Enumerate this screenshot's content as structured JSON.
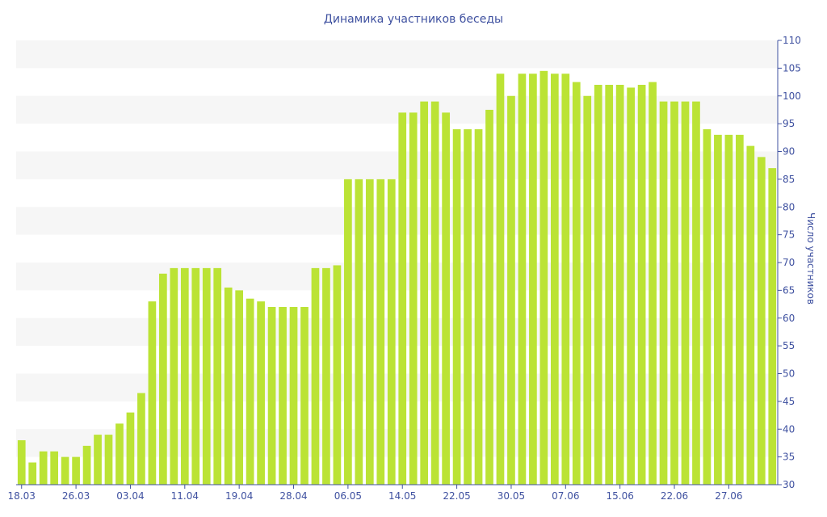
{
  "chart_data": {
    "type": "bar",
    "title": "Динамика участников беседы",
    "xlabel": "",
    "ylabel": "Число участников",
    "ylim": [
      30,
      110
    ],
    "yticks": [
      30,
      35,
      40,
      45,
      50,
      55,
      60,
      65,
      70,
      75,
      80,
      85,
      90,
      95,
      100,
      105,
      110
    ],
    "x_tick_labels": [
      "18.03",
      "26.03",
      "03.04",
      "11.04",
      "19.04",
      "28.04",
      "06.05",
      "14.05",
      "22.05",
      "30.05",
      "07.06",
      "15.06",
      "22.06",
      "27.06"
    ],
    "x_tick_positions": [
      0,
      5,
      10,
      15,
      20,
      25,
      30,
      35,
      40,
      45,
      50,
      55,
      60,
      65
    ],
    "values": [
      38,
      34,
      36,
      36,
      35,
      35,
      37,
      39,
      39,
      41,
      43,
      46.5,
      63,
      68,
      69,
      69,
      69,
      69,
      69,
      65.5,
      65,
      63.5,
      63,
      62,
      62,
      62,
      62,
      69,
      69,
      69.5,
      85,
      85,
      85,
      85,
      85,
      97,
      97,
      99,
      99,
      97,
      94,
      94,
      94,
      97.5,
      104,
      100,
      104,
      104,
      104.5,
      104,
      104,
      102.5,
      100,
      102,
      102,
      102,
      101.5,
      102,
      102.5,
      99,
      99,
      99,
      99,
      94,
      93,
      93,
      93,
      91,
      89,
      87
    ],
    "y_axis_side": "right",
    "grid": "alternating horizontal bands",
    "colors": {
      "bar": "#bbe335",
      "text": "#3f51a0",
      "band": "#f6f6f6"
    }
  }
}
